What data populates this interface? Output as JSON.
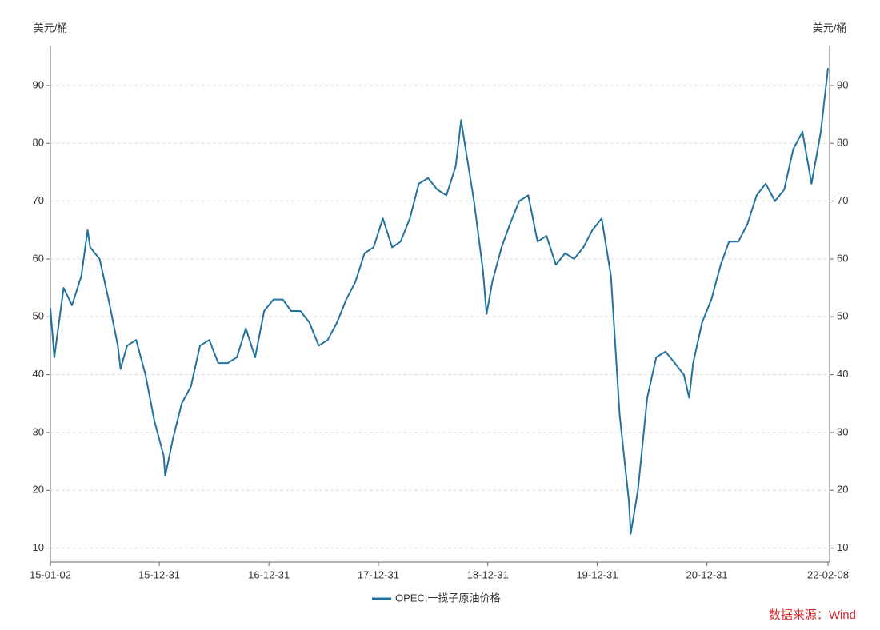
{
  "chart_data": {
    "type": "line",
    "y_label": "美元/桶",
    "y2_label": "美元/桶",
    "x": [
      "15-01-02",
      "15-01-15",
      "15-02-15",
      "15-03-15",
      "15-04-15",
      "15-05-06",
      "15-05-15",
      "15-06-15",
      "15-07-15",
      "15-08-15",
      "15-08-24",
      "15-09-15",
      "15-10-15",
      "15-11-15",
      "15-12-15",
      "16-01-15",
      "16-01-20",
      "16-02-15",
      "16-03-15",
      "16-04-15",
      "16-05-15",
      "16-06-15",
      "16-07-15",
      "16-08-15",
      "16-09-15",
      "16-10-15",
      "16-11-15",
      "16-12-15",
      "17-01-15",
      "17-02-15",
      "17-03-15",
      "17-04-15",
      "17-05-15",
      "17-06-15",
      "17-07-15",
      "17-08-15",
      "17-09-15",
      "17-10-15",
      "17-11-15",
      "17-12-15",
      "18-01-15",
      "18-02-15",
      "18-03-15",
      "18-04-15",
      "18-05-15",
      "18-06-15",
      "18-07-15",
      "18-08-15",
      "18-09-15",
      "18-10-03",
      "18-10-15",
      "18-11-15",
      "18-12-15",
      "18-12-27",
      "19-01-15",
      "19-02-15",
      "19-03-15",
      "19-04-15",
      "19-05-15",
      "19-06-15",
      "19-07-15",
      "19-08-15",
      "19-09-15",
      "19-10-15",
      "19-11-15",
      "19-12-15",
      "20-01-15",
      "20-02-15",
      "20-03-15",
      "20-04-15",
      "20-04-21",
      "20-05-15",
      "20-06-15",
      "20-07-15",
      "20-08-15",
      "20-09-15",
      "20-10-15",
      "20-11-02",
      "20-11-15",
      "20-12-15",
      "21-01-15",
      "21-02-15",
      "21-03-15",
      "21-04-15",
      "21-05-15",
      "21-06-15",
      "21-07-15",
      "21-08-15",
      "21-09-15",
      "21-10-15",
      "21-11-15",
      "21-12-15",
      "22-01-15",
      "22-02-08"
    ],
    "series": [
      {
        "name": "OPEC:一揽子原油价格",
        "color": "#21729c",
        "values": [
          51.5,
          43,
          55,
          52,
          57,
          65,
          62,
          60,
          53,
          45,
          41,
          45,
          46,
          40,
          32,
          26,
          22.5,
          29,
          35,
          38,
          45,
          46,
          42,
          42,
          43,
          48,
          43,
          51,
          53,
          53,
          51,
          51,
          49,
          45,
          46,
          49,
          53,
          56,
          61,
          62,
          67,
          62,
          63,
          67,
          73,
          74,
          72,
          71,
          76,
          84,
          80,
          70,
          58,
          50.5,
          56,
          62,
          66,
          70,
          71,
          63,
          64,
          59,
          61,
          60,
          62,
          65,
          67,
          57,
          33,
          18,
          12.5,
          20,
          36,
          43,
          44,
          42,
          40,
          36,
          42,
          49,
          53,
          59,
          63,
          63,
          66,
          71,
          73,
          70,
          72,
          79,
          82,
          73,
          82,
          93
        ]
      }
    ],
    "xlim": [
      "15-01-02",
      "22-02-08"
    ],
    "xticks": [
      "15-01-02",
      "15-12-31",
      "16-12-31",
      "17-12-31",
      "18-12-31",
      "19-12-31",
      "20-12-31",
      "22-02-08"
    ],
    "ylim": [
      7.6,
      96.9
    ],
    "yticks": [
      10,
      20,
      30,
      40,
      50,
      60,
      70,
      80,
      90
    ],
    "grid": true,
    "legend": "bottom",
    "source": "数据来源：Wind"
  }
}
